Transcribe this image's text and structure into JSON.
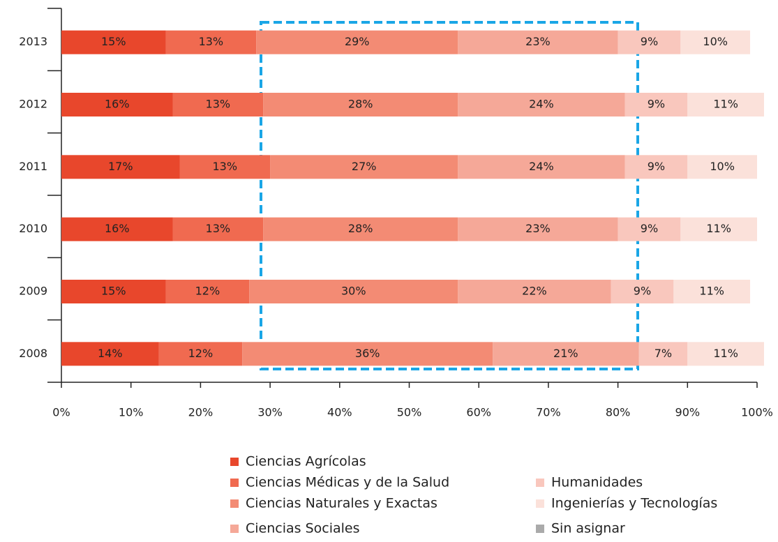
{
  "chart_data": {
    "type": "stacked_barh",
    "categories": [
      "2013",
      "2012",
      "2011",
      "2010",
      "2009",
      "2008"
    ],
    "series": [
      {
        "name": "Ciencias Agrícolas",
        "color": "#e8472c",
        "values": [
          15,
          16,
          17,
          16,
          15,
          14
        ],
        "value_labels": [
          "15%",
          "16%",
          "17%",
          "16%",
          "15%",
          "14%"
        ]
      },
      {
        "name": "Ciencias Médicas y de la Salud",
        "color": "#f06a50",
        "values": [
          13,
          13,
          13,
          13,
          12,
          12
        ],
        "value_labels": [
          "13%",
          "13%",
          "13%",
          "13%",
          "12%",
          "12%"
        ]
      },
      {
        "name": "Ciencias Naturales y Exactas",
        "color": "#f38b74",
        "values": [
          29,
          28,
          27,
          28,
          30,
          36
        ],
        "value_labels": [
          "29%",
          "28%",
          "27%",
          "28%",
          "30%",
          "36%"
        ]
      },
      {
        "name": "Ciencias Sociales",
        "color": "#f5a898",
        "values": [
          23,
          24,
          24,
          23,
          22,
          21
        ],
        "value_labels": [
          "23%",
          "24%",
          "24%",
          "23%",
          "22%",
          "21%"
        ]
      },
      {
        "name": "Humanidades",
        "color": "#f9c7bd",
        "values": [
          9,
          9,
          9,
          9,
          9,
          7
        ],
        "value_labels": [
          "9%",
          "9%",
          "9%",
          "9%",
          "9%",
          "7%"
        ]
      },
      {
        "name": "Ingenierías y Tecnologías",
        "color": "#fbe1da",
        "values": [
          10,
          11,
          10,
          11,
          11,
          11
        ],
        "value_labels": [
          "10%",
          "11%",
          "10%",
          "11%",
          "11%",
          "11%"
        ]
      },
      {
        "name": "Sin asignar",
        "color": "#aaaaaa",
        "values": [
          0,
          0,
          0,
          0,
          0,
          0
        ]
      }
    ],
    "xlim": [
      0,
      100
    ],
    "xticks": [
      {
        "value": 0,
        "label": "0%"
      },
      {
        "value": 10,
        "label": "10%"
      },
      {
        "value": 20,
        "label": "20%"
      },
      {
        "value": 30,
        "label": "30%"
      },
      {
        "value": 40,
        "label": "40%"
      },
      {
        "value": 50,
        "label": "50%"
      },
      {
        "value": 60,
        "label": "60%"
      },
      {
        "value": 70,
        "label": "70%"
      },
      {
        "value": 80,
        "label": "80%"
      },
      {
        "value": 90,
        "label": "90%"
      },
      {
        "value": 100,
        "label": "100%"
      }
    ]
  }
}
